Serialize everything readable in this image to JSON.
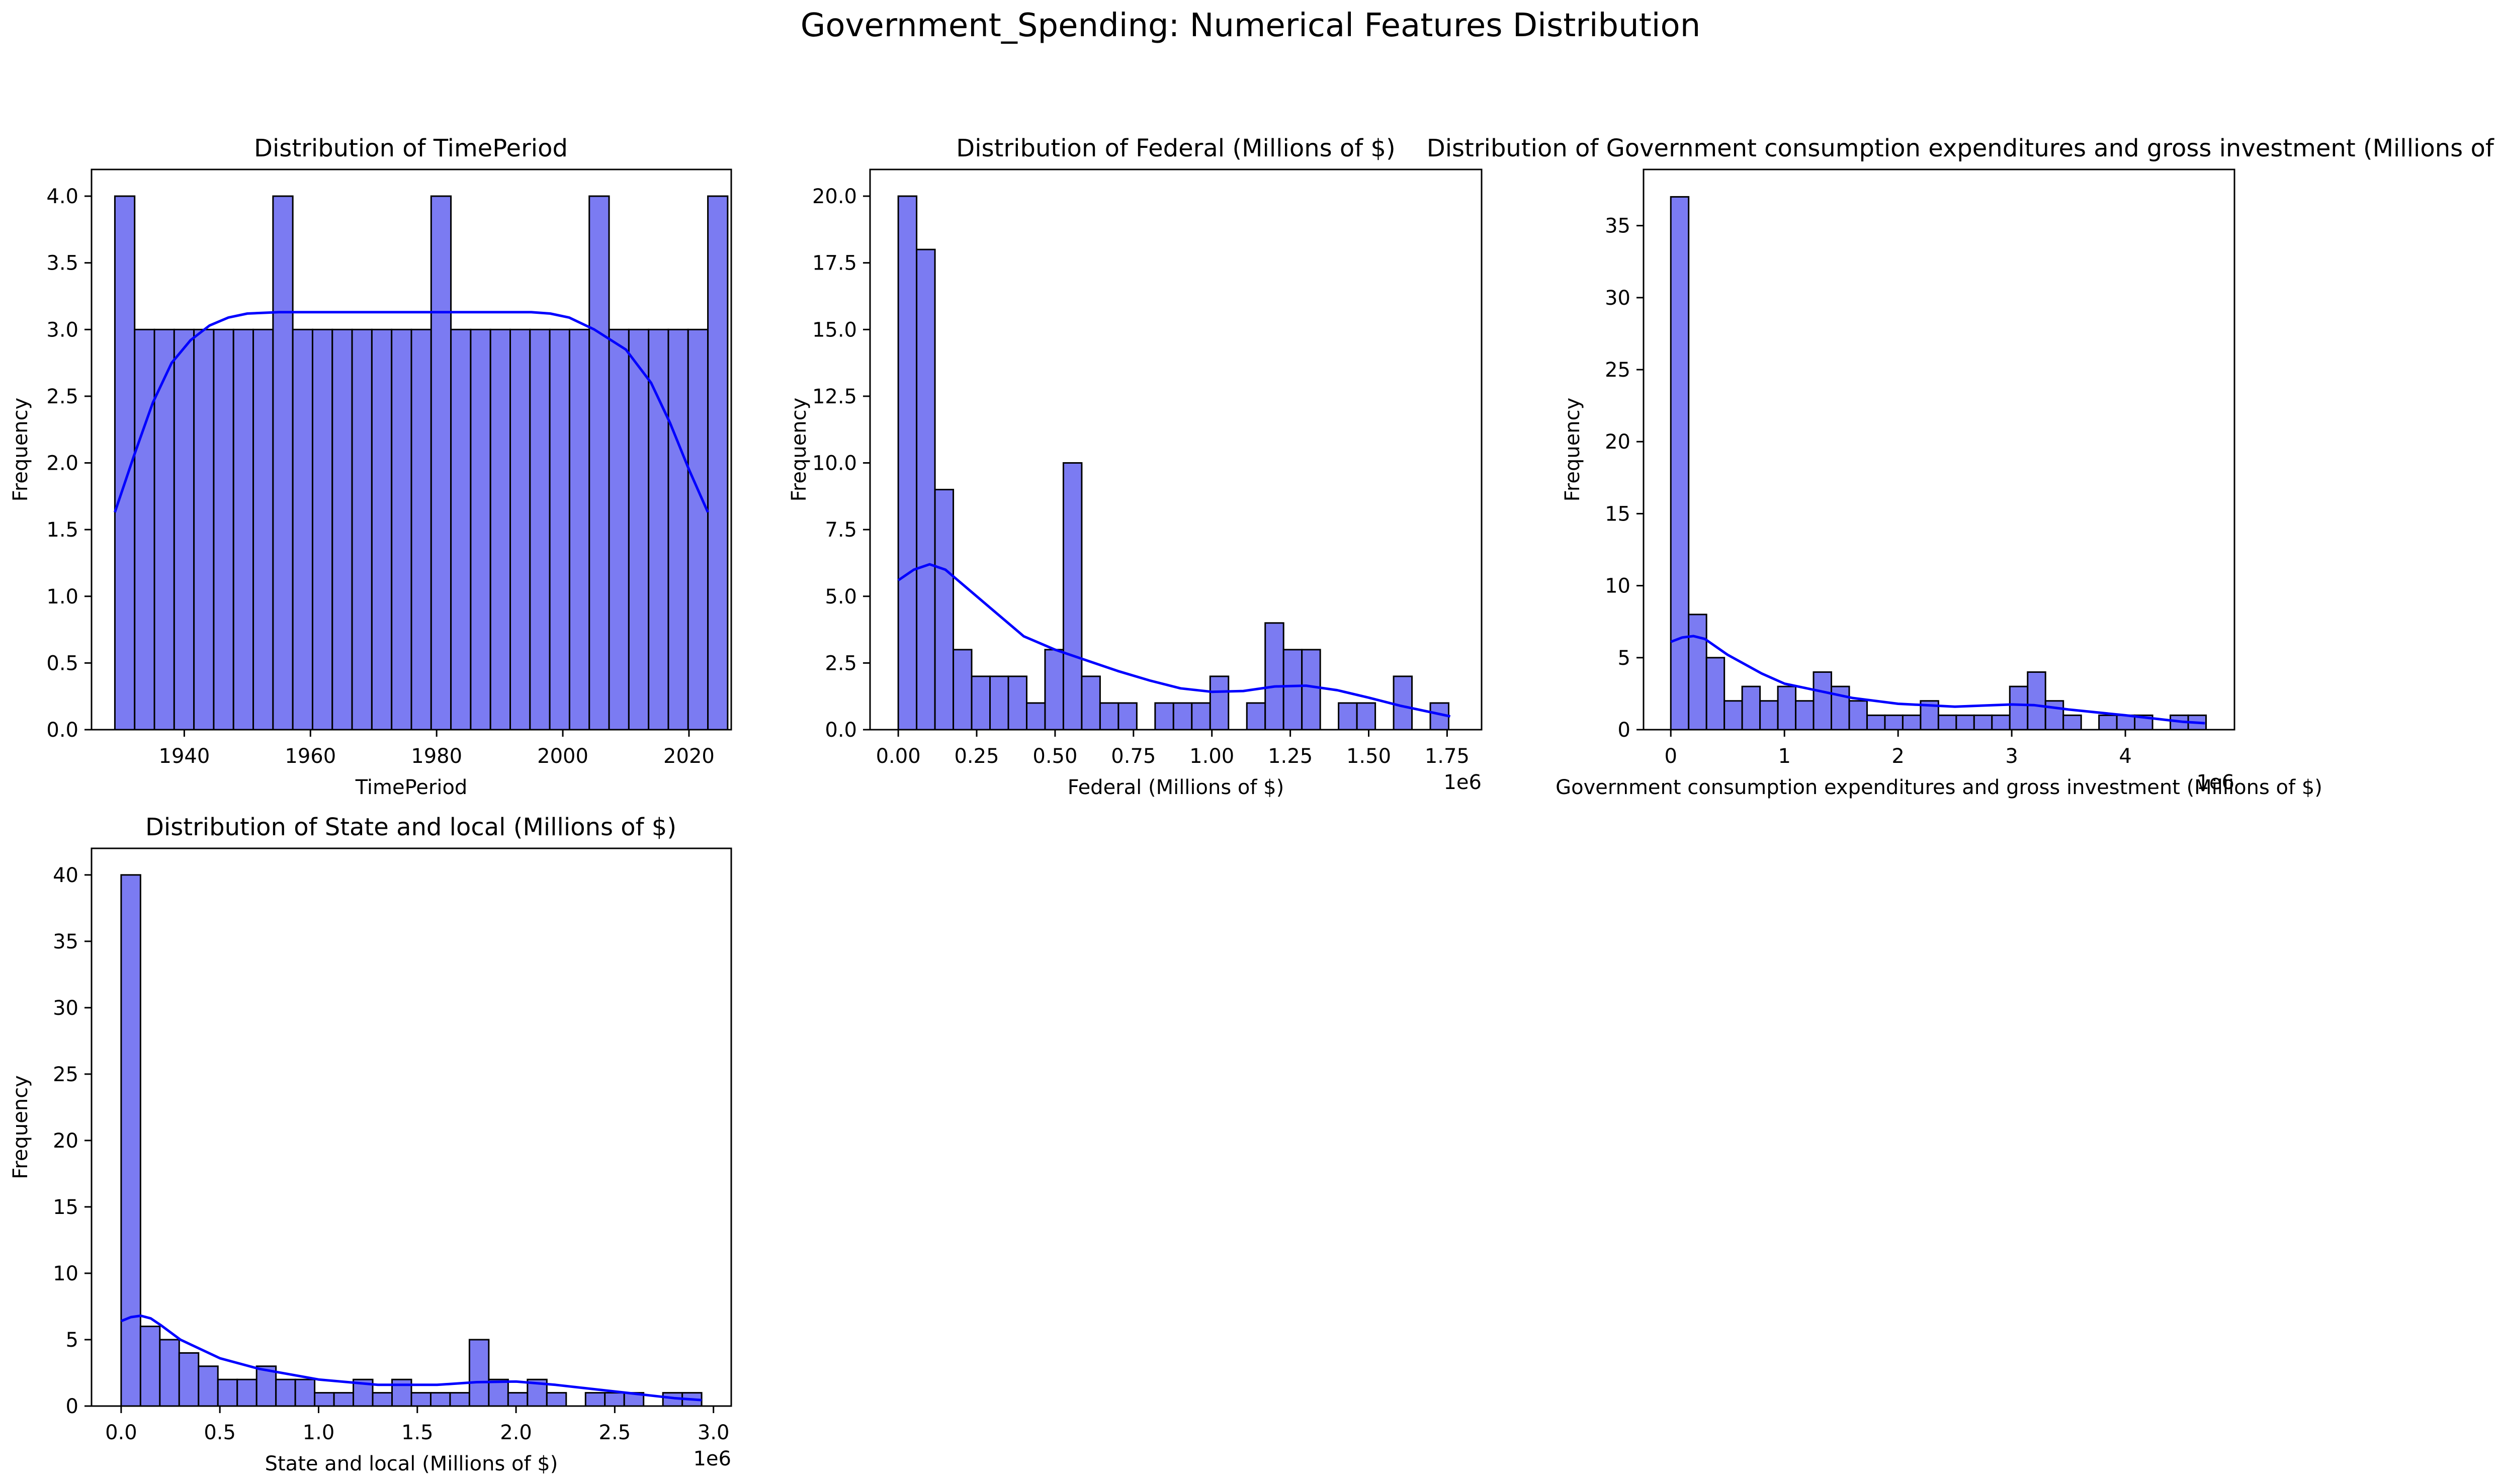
{
  "figure": {
    "suptitle": "Government_Spending: Numerical Features Distribution"
  },
  "style": {
    "bar_fill": "#7b7bf2",
    "bar_edge": "#000000",
    "kde_color": "#0000ff"
  },
  "chart_data": [
    {
      "type": "bar",
      "subtype": "histogram",
      "title": "Distribution of TimePeriod",
      "xlabel": "TimePeriod",
      "ylabel": "Frequency",
      "xlim": [
        1925.3,
        2026.7
      ],
      "ylim": [
        0,
        4.2
      ],
      "xticks": [
        1940,
        1960,
        1980,
        2000,
        2020
      ],
      "xtick_labels": [
        "1940",
        "1960",
        "1980",
        "2000",
        "2020"
      ],
      "yticks": [
        0,
        0.5,
        1,
        1.5,
        2,
        2.5,
        3,
        3.5,
        4
      ],
      "ytick_labels": [
        "0.0",
        "0.5",
        "1.0",
        "1.5",
        "2.0",
        "2.5",
        "3.0",
        "3.5",
        "4.0"
      ],
      "offset_label": "",
      "bin_start": 1929,
      "bin_width": 3.1333,
      "counts": [
        4,
        3,
        3,
        3,
        3,
        3,
        3,
        3,
        4,
        3,
        3,
        3,
        3,
        3,
        3,
        3,
        4,
        3,
        3,
        3,
        3,
        3,
        3,
        3,
        4,
        3,
        3,
        3,
        3,
        3,
        4
      ],
      "kde": {
        "x": [
          1929,
          1932,
          1935,
          1938,
          1941,
          1944,
          1947,
          1950,
          1955,
          1960,
          1970,
          1980,
          1990,
          1995,
          1998,
          2001,
          2005,
          2010,
          2014,
          2017,
          2020,
          2023
        ],
        "y": [
          1.63,
          2.05,
          2.45,
          2.75,
          2.92,
          3.03,
          3.09,
          3.12,
          3.13,
          3.13,
          3.13,
          3.13,
          3.13,
          3.13,
          3.12,
          3.09,
          3.0,
          2.85,
          2.6,
          2.3,
          1.95,
          1.63
        ]
      }
    },
    {
      "type": "bar",
      "subtype": "histogram",
      "title": "Distribution of Federal (Millions of $)",
      "xlabel": "Federal (Millions of $)",
      "ylabel": "Frequency",
      "xlim": [
        -0.09,
        1.86
      ],
      "ylim": [
        0,
        21
      ],
      "xticks": [
        0,
        0.25,
        0.5,
        0.75,
        1,
        1.25,
        1.5,
        1.75
      ],
      "xtick_labels": [
        "0.00",
        "0.25",
        "0.50",
        "0.75",
        "1.00",
        "1.25",
        "1.50",
        "1.75"
      ],
      "yticks": [
        0,
        2.5,
        5,
        7.5,
        10,
        12.5,
        15,
        17.5,
        20
      ],
      "ytick_labels": [
        "0.0",
        "2.5",
        "5.0",
        "7.5",
        "10.0",
        "12.5",
        "15.0",
        "17.5",
        "20.0"
      ],
      "offset_label": "1e6",
      "bin_start": 0.0,
      "bin_width": 0.0585,
      "counts": [
        20,
        18,
        9,
        3,
        2,
        2,
        2,
        1,
        3,
        10,
        2,
        1,
        1,
        0,
        1,
        1,
        1,
        2,
        0,
        1,
        4,
        3,
        3,
        0,
        1,
        1,
        0,
        2,
        0,
        1
      ],
      "kde": {
        "x": [
          0,
          0.05,
          0.1,
          0.15,
          0.2,
          0.3,
          0.4,
          0.5,
          0.6,
          0.7,
          0.8,
          0.9,
          1.0,
          1.1,
          1.2,
          1.3,
          1.4,
          1.5,
          1.6,
          1.7,
          1.76
        ],
        "y": [
          5.6,
          6.0,
          6.2,
          6.0,
          5.5,
          4.5,
          3.5,
          3.0,
          2.6,
          2.2,
          1.85,
          1.55,
          1.42,
          1.45,
          1.62,
          1.65,
          1.48,
          1.2,
          0.9,
          0.65,
          0.5
        ]
      }
    },
    {
      "type": "bar",
      "subtype": "histogram",
      "title": "Distribution of Government consumption expenditures and gross investment (Millions of $)",
      "xlabel": "Government consumption expenditures and gross investment (Millions of $)",
      "ylabel": "Frequency",
      "xlim": [
        -0.24,
        4.96
      ],
      "ylim": [
        0,
        38.9
      ],
      "xticks": [
        0,
        1,
        2,
        3,
        4
      ],
      "xtick_labels": [
        "0",
        "1",
        "2",
        "3",
        "4"
      ],
      "yticks": [
        0,
        5,
        10,
        15,
        20,
        25,
        30,
        35
      ],
      "ytick_labels": [
        "0",
        "5",
        "10",
        "15",
        "20",
        "25",
        "30",
        "35"
      ],
      "offset_label": "1e6",
      "bin_start": 0.0,
      "bin_width": 0.157,
      "counts": [
        37,
        8,
        5,
        2,
        3,
        2,
        3,
        2,
        4,
        3,
        2,
        1,
        1,
        1,
        2,
        1,
        1,
        1,
        1,
        3,
        4,
        2,
        1,
        0,
        1,
        1,
        1,
        0,
        1,
        1
      ],
      "kde": {
        "x": [
          0,
          0.1,
          0.2,
          0.3,
          0.5,
          0.8,
          1.0,
          1.3,
          1.6,
          2.0,
          2.5,
          3.0,
          3.2,
          3.5,
          4.0,
          4.5,
          4.7
        ],
        "y": [
          6.1,
          6.4,
          6.5,
          6.3,
          5.2,
          3.9,
          3.2,
          2.7,
          2.2,
          1.8,
          1.6,
          1.75,
          1.7,
          1.4,
          1.0,
          0.55,
          0.45
        ]
      }
    },
    {
      "type": "bar",
      "subtype": "histogram",
      "title": "Distribution of State and local (Millions of $)",
      "xlabel": "State and local (Millions of $)",
      "ylabel": "Frequency",
      "xlim": [
        -0.15,
        3.09
      ],
      "ylim": [
        0,
        42
      ],
      "xticks": [
        0,
        0.5,
        1,
        1.5,
        2,
        2.5,
        3
      ],
      "xtick_labels": [
        "0.0",
        "0.5",
        "1.0",
        "1.5",
        "2.0",
        "2.5",
        "3.0"
      ],
      "yticks": [
        0,
        5,
        10,
        15,
        20,
        25,
        30,
        35,
        40
      ],
      "ytick_labels": [
        "0",
        "5",
        "10",
        "15",
        "20",
        "25",
        "30",
        "35",
        "40"
      ],
      "offset_label": "1e6",
      "bin_start": 0.0,
      "bin_width": 0.098,
      "counts": [
        40,
        6,
        5,
        4,
        3,
        2,
        2,
        3,
        2,
        2,
        1,
        1,
        2,
        1,
        2,
        1,
        1,
        1,
        5,
        2,
        1,
        2,
        1,
        0,
        1,
        1,
        1,
        0,
        1,
        1
      ],
      "kde": {
        "x": [
          0,
          0.05,
          0.1,
          0.15,
          0.2,
          0.3,
          0.5,
          0.7,
          1.0,
          1.3,
          1.6,
          1.8,
          2.0,
          2.2,
          2.5,
          2.8,
          2.94
        ],
        "y": [
          6.4,
          6.7,
          6.8,
          6.6,
          6.1,
          5.0,
          3.6,
          2.8,
          2.0,
          1.6,
          1.6,
          1.8,
          1.85,
          1.6,
          1.1,
          0.6,
          0.45
        ]
      }
    }
  ]
}
